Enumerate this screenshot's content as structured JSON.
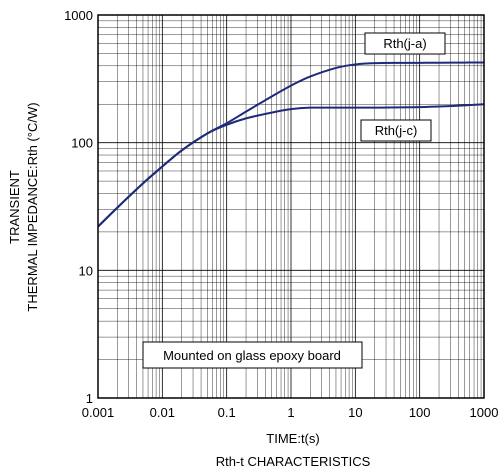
{
  "chart_data": {
    "type": "line",
    "title": "",
    "caption": "Rth-t CHARACTERISTICS",
    "xlabel": "TIME:t(s)",
    "ylabel_lines": [
      "TRANSIENT",
      "THERMAL IMPEDANCE:Rth (°C/W)"
    ],
    "xscale": "log",
    "yscale": "log",
    "xlim": [
      0.001,
      1000
    ],
    "ylim": [
      1,
      1000
    ],
    "x_ticks": [
      "0.001",
      "0.01",
      "0.1",
      "1",
      "10",
      "100",
      "1000"
    ],
    "y_ticks": [
      "1",
      "10",
      "100",
      "1000"
    ],
    "grid": true,
    "annotation": "Mounted on glass epoxy board",
    "line_color": "#1f2a7a",
    "series": [
      {
        "name": "Rth(j-a)",
        "x": [
          0.001,
          0.002,
          0.005,
          0.01,
          0.02,
          0.05,
          0.1,
          0.2,
          0.5,
          1,
          2,
          5,
          10,
          20,
          50,
          100,
          200,
          500,
          1000
        ],
        "values": [
          22,
          31,
          48,
          65,
          87,
          118,
          142,
          175,
          230,
          280,
          330,
          385,
          410,
          420,
          422,
          422,
          423,
          424,
          425
        ]
      },
      {
        "name": "Rth(j-c)",
        "x": [
          0.001,
          0.002,
          0.005,
          0.01,
          0.02,
          0.05,
          0.1,
          0.2,
          0.5,
          1,
          2,
          5,
          10,
          20,
          50,
          100,
          200,
          500,
          1000
        ],
        "values": [
          22,
          31,
          48,
          65,
          87,
          118,
          138,
          155,
          172,
          183,
          188,
          188,
          188,
          188,
          189,
          190,
          192,
          196,
          200
        ]
      }
    ]
  }
}
